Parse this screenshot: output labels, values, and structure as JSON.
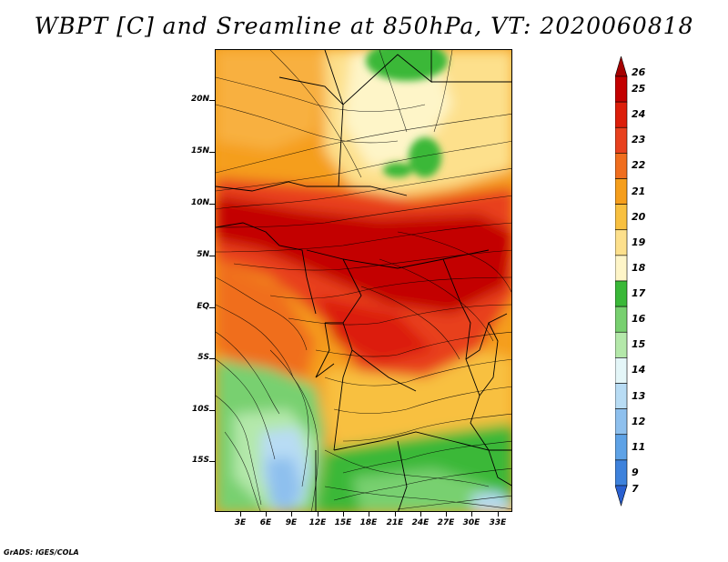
{
  "title": "WBPT [C] and Sreamline at 850hPa, VT: 2020060818",
  "credit": "GrADS: IGES/COLA",
  "map": {
    "variable": "Wet-bulb potential temperature",
    "units": "C",
    "level": "850hPa",
    "valid_time": "2020060818",
    "lat_labels": [
      "20N",
      "15N",
      "10N",
      "5N",
      "EQ",
      "5S",
      "10S",
      "15S"
    ],
    "lat_values": [
      20,
      15,
      10,
      5,
      0,
      -5,
      -10,
      -15
    ],
    "lon_labels": [
      "3E",
      "6E",
      "9E",
      "12E",
      "15E",
      "18E",
      "21E",
      "24E",
      "27E",
      "30E",
      "33E"
    ],
    "lon_values": [
      3,
      6,
      9,
      12,
      15,
      18,
      21,
      24,
      27,
      30,
      33
    ],
    "lon_range": [
      0.5,
      35
    ],
    "lat_range": [
      -20,
      24.5
    ]
  },
  "colorbar": {
    "labels": [
      "26",
      "25",
      "24",
      "23",
      "22",
      "21",
      "20",
      "19",
      "18",
      "17",
      "16",
      "15",
      "14",
      "13",
      "12",
      "11",
      "9",
      "7"
    ],
    "colors": [
      "#a50000",
      "#c30000",
      "#dc1e0a",
      "#e8411e",
      "#f06e1e",
      "#f59e1c",
      "#f8c040",
      "#fde08c",
      "#fef5c8",
      "#3ab838",
      "#78d070",
      "#b4e8aa",
      "#e4f6f8",
      "#b8dcf4",
      "#8ec0ee",
      "#5ea2e6",
      "#3e82dc",
      "#2a60d0"
    ]
  }
}
